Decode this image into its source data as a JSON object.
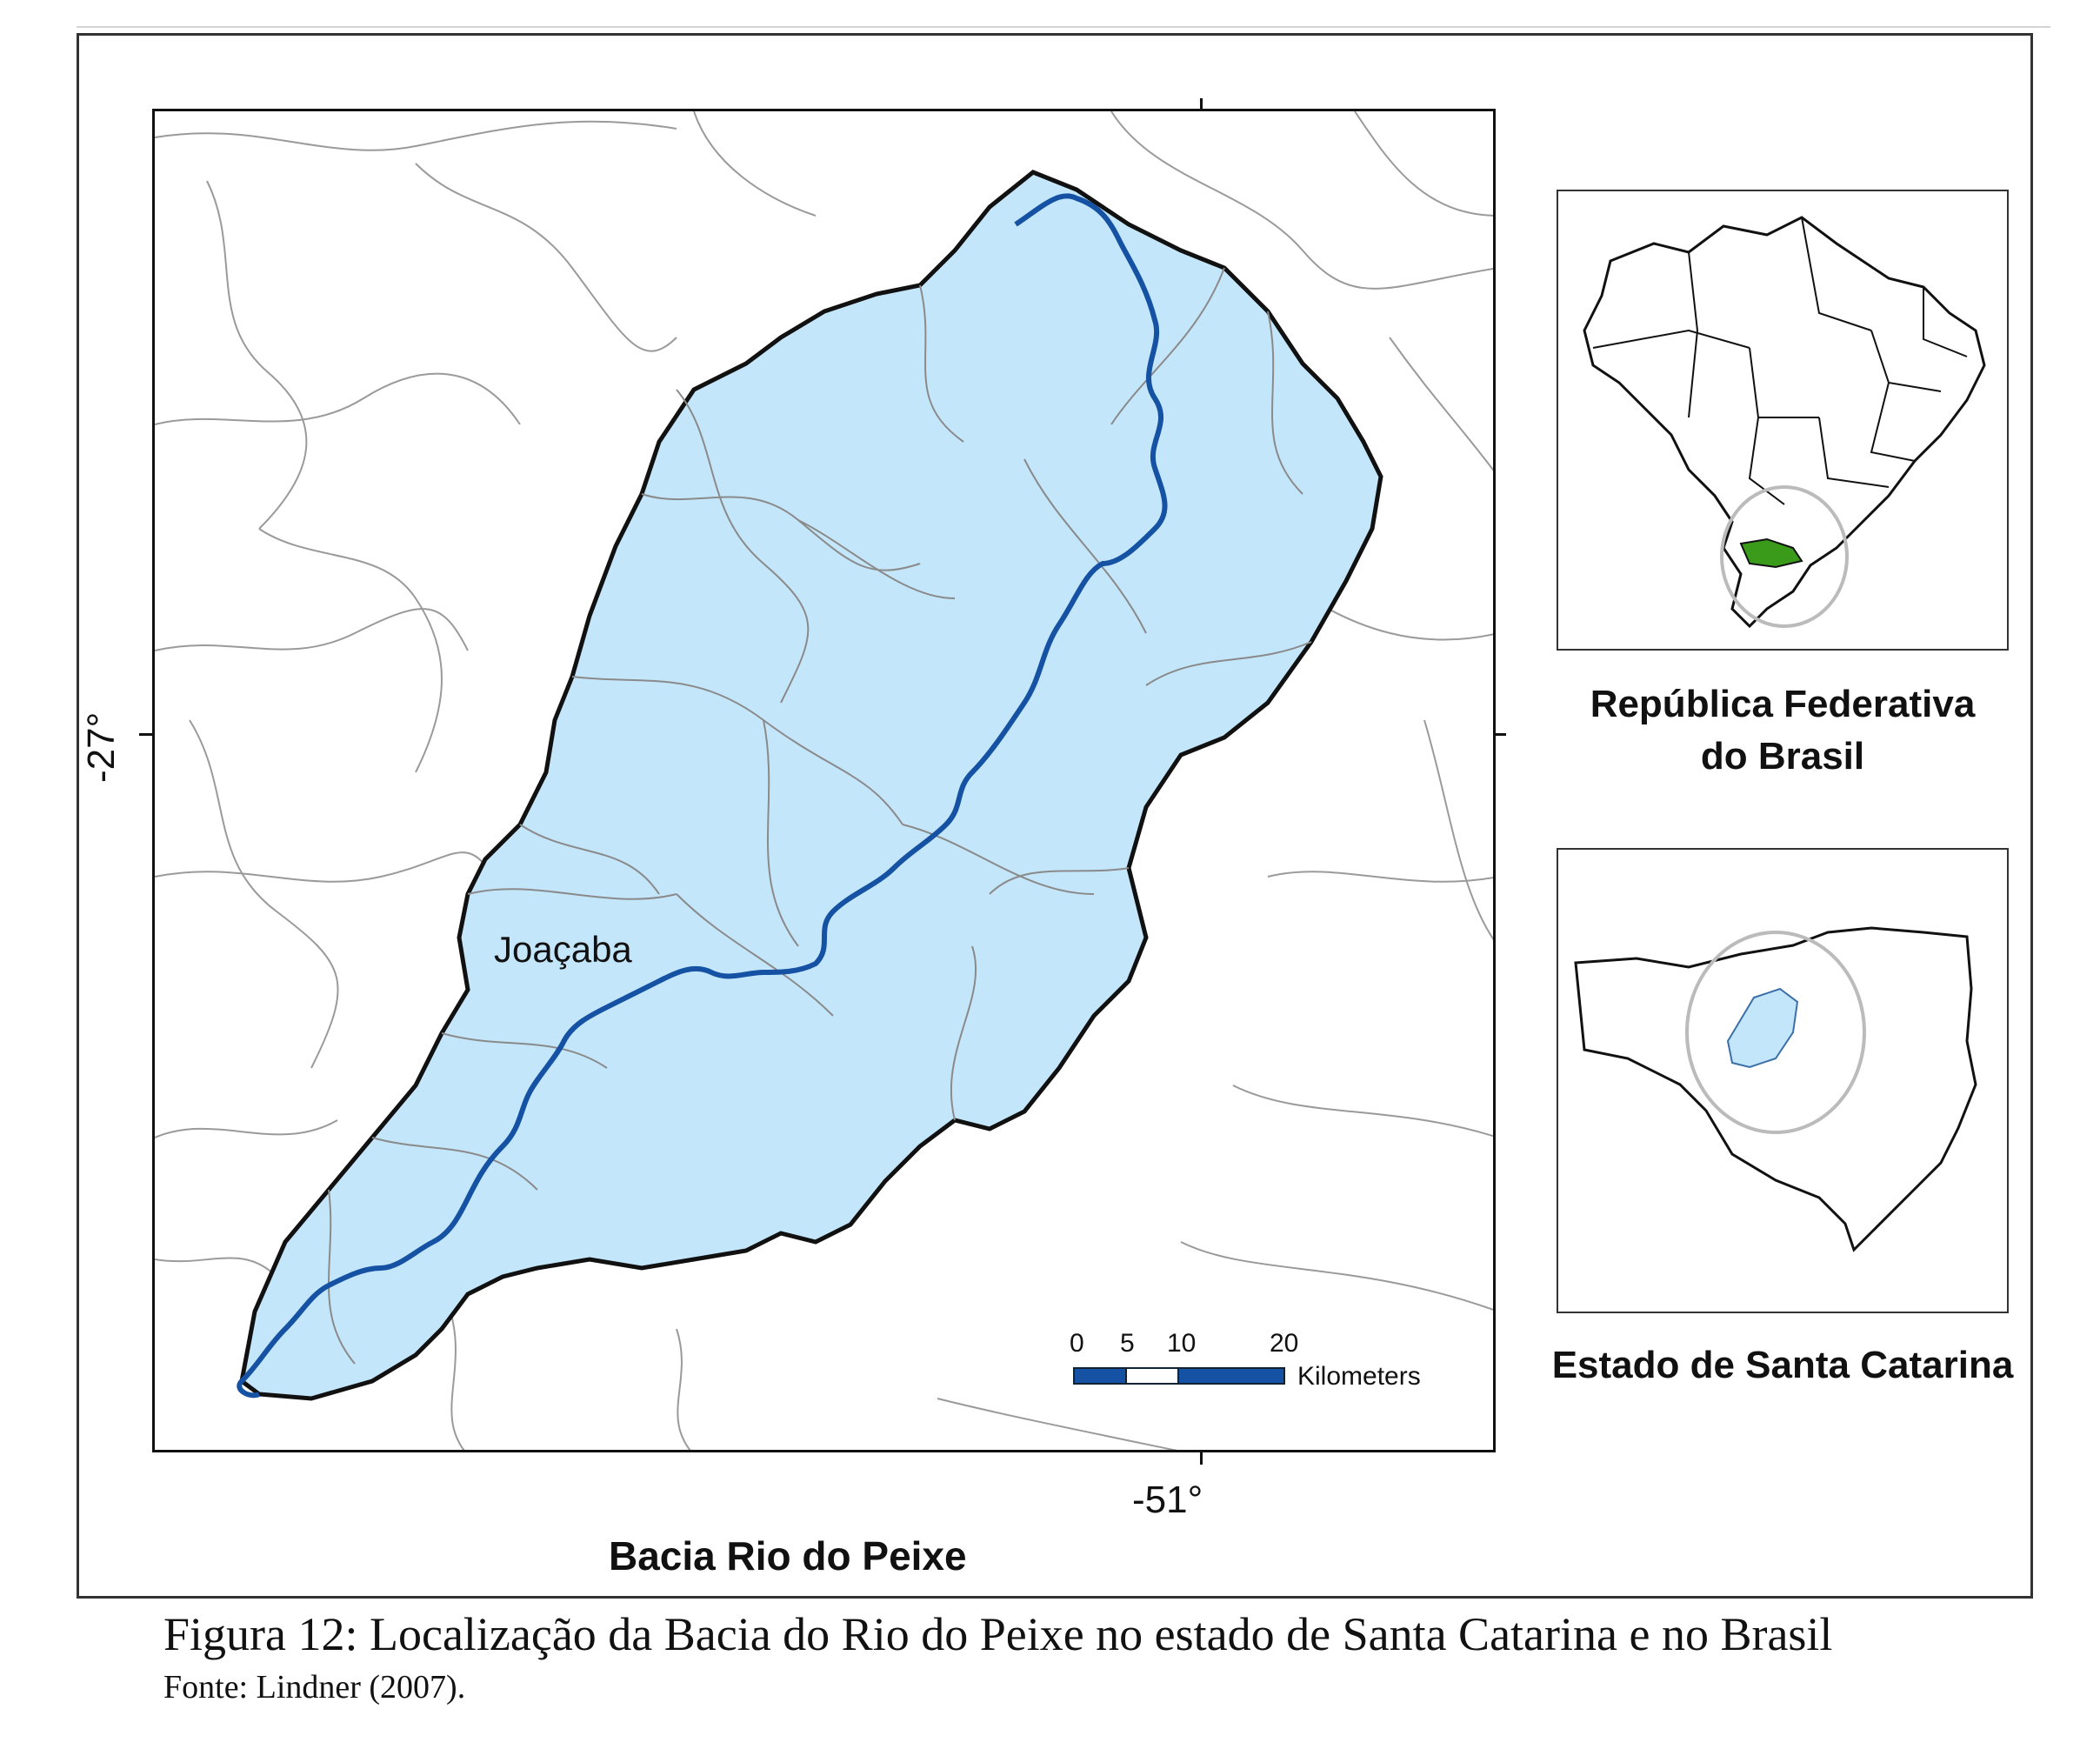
{
  "map": {
    "title": "Bacia Rio do Peixe",
    "lat_label": "-27°",
    "lon_label": "-51°",
    "city_label": "Joaçaba",
    "scale": {
      "ticks": [
        "0",
        "5",
        "10",
        "20"
      ],
      "unit": "Kilometers"
    },
    "colors": {
      "basin_fill": "#c4e6fb",
      "basin_outline": "#111111",
      "river": "#1552a3",
      "boundaries": "#9a9a9a",
      "highlight_state": "#3a9a1a",
      "locator_circle": "#bbbbbb"
    }
  },
  "insets": {
    "brasil_title_line1": "República Federativa",
    "brasil_title_line2": "do Brasil",
    "sc_title": "Estado de Santa Catarina"
  },
  "caption": {
    "text": "Figura 12:  Localização da Bacia do Rio do Peixe no estado de Santa Catarina e no Brasil",
    "source": "Fonte: Lindner (2007)."
  }
}
